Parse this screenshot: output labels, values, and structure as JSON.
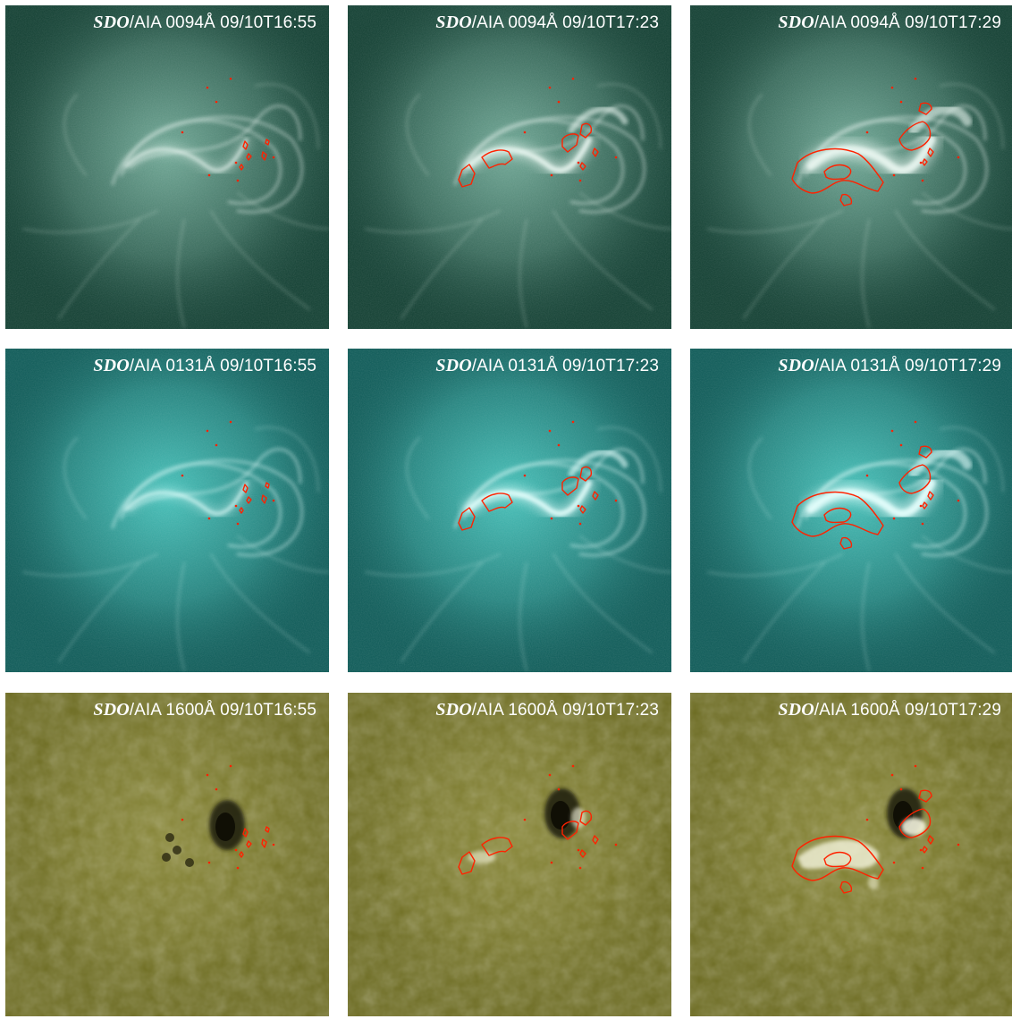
{
  "instrument": "SDO",
  "rows": [
    {
      "prefix": "/AIA 0094Å",
      "theme": "aia94"
    },
    {
      "prefix": "/AIA 0131Å",
      "theme": "aia131"
    },
    {
      "prefix": "/AIA 1600Å",
      "theme": "aia1600"
    }
  ],
  "times": [
    "09/10T16:55",
    "09/10T17:23",
    "09/10T17:29"
  ],
  "panels": [
    {
      "instrument": "SDO",
      "rest": "/AIA 0094Å 09/10T16:55",
      "theme": "aia94",
      "stage": 0
    },
    {
      "instrument": "SDO",
      "rest": "/AIA 0094Å 09/10T17:23",
      "theme": "aia94",
      "stage": 1
    },
    {
      "instrument": "SDO",
      "rest": "/AIA 0094Å 09/10T17:29",
      "theme": "aia94",
      "stage": 2
    },
    {
      "instrument": "SDO",
      "rest": "/AIA 0131Å 09/10T16:55",
      "theme": "aia131",
      "stage": 0
    },
    {
      "instrument": "SDO",
      "rest": "/AIA 0131Å 09/10T17:23",
      "theme": "aia131",
      "stage": 1
    },
    {
      "instrument": "SDO",
      "rest": "/AIA 0131Å 09/10T17:29",
      "theme": "aia131",
      "stage": 2
    },
    {
      "instrument": "SDO",
      "rest": "/AIA 1600Å 09/10T16:55",
      "theme": "aia1600",
      "stage": 0
    },
    {
      "instrument": "SDO",
      "rest": "/AIA 1600Å 09/10T17:23",
      "theme": "aia1600",
      "stage": 1
    },
    {
      "instrument": "SDO",
      "rest": "/AIA 1600Å 09/10T17:29",
      "theme": "aia1600",
      "stage": 2
    }
  ],
  "colors": {
    "aia94_bg": "#123f32",
    "aia94_glow": "#7fb9a6",
    "aia94_bright": "#eaf7f1",
    "aia131_bg": "#0e5a57",
    "aia131_glow": "#4fd1c9",
    "aia131_bright": "#e6fffd",
    "aia1600_bg": "#6b6a20",
    "aia1600_glow": "#b7b45a",
    "aia1600_bright": "#fbfbe6",
    "contour": "#ff2200",
    "label_text": "#ffffff"
  }
}
